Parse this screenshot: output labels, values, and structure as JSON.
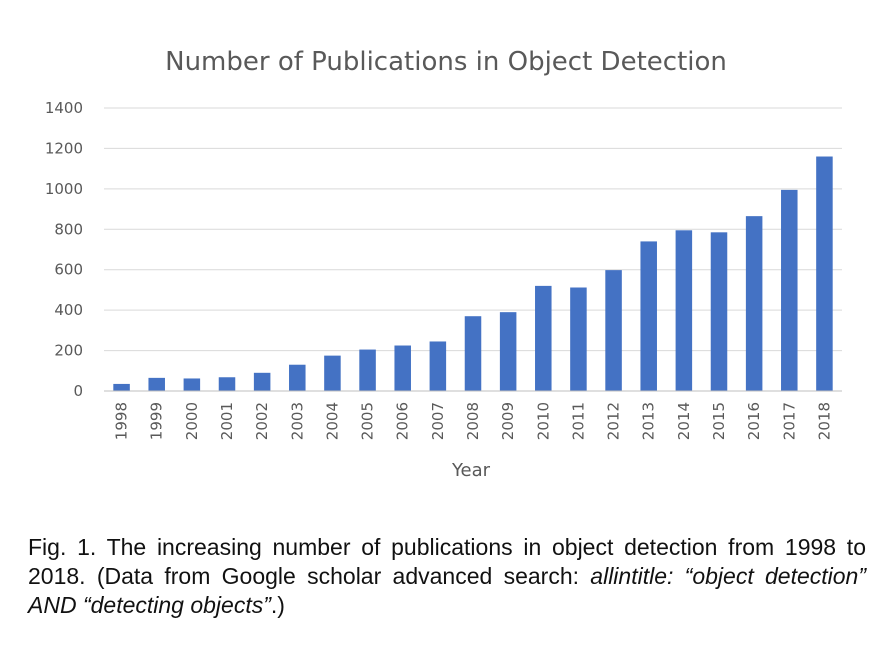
{
  "chart_data": {
    "type": "bar",
    "title": "Number of Publications in Object Detection",
    "xlabel": "Year",
    "ylabel": "",
    "categories": [
      "1998",
      "1999",
      "2000",
      "2001",
      "2002",
      "2003",
      "2004",
      "2005",
      "2006",
      "2007",
      "2008",
      "2009",
      "2010",
      "2011",
      "2012",
      "2013",
      "2014",
      "2015",
      "2016",
      "2017",
      "2018"
    ],
    "values": [
      35,
      65,
      62,
      68,
      90,
      130,
      175,
      205,
      225,
      245,
      370,
      390,
      520,
      512,
      598,
      740,
      795,
      785,
      865,
      995,
      1160
    ],
    "ylim": [
      0,
      1400
    ],
    "yticks": [
      0,
      200,
      400,
      600,
      800,
      1000,
      1200,
      1400
    ],
    "grid": true,
    "legend": "none",
    "bar_color": "#4472C4",
    "grid_color": "#D9D9D9"
  },
  "caption": {
    "prefix": "Fig. 1. The increasing number of publications in object detection from 1998 to 2018. (Data from Google scholar advanced search: ",
    "query": "allintitle: “object detection” AND “detecting objects”",
    "suffix": ".)"
  }
}
